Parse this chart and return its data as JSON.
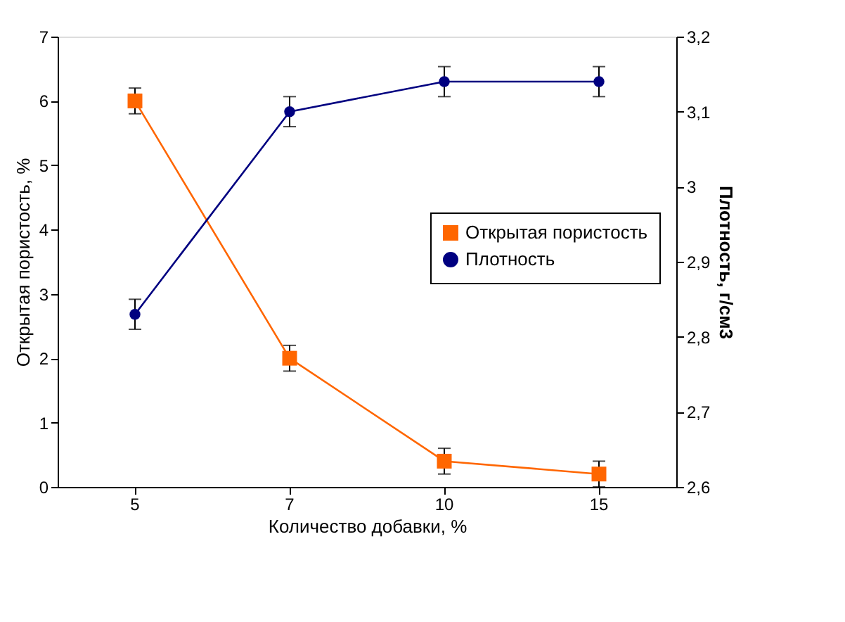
{
  "chart_data": {
    "type": "line",
    "xlabel": "Количество добавки, %",
    "ylabel": "Открытая пористость, %",
    "y2label": "Плотность, г/см3",
    "categories": [
      "5",
      "7",
      "10",
      "15"
    ],
    "series": [
      {
        "name": "Открытая пористость",
        "color": "#ff6600",
        "marker": "square",
        "values": [
          6.0,
          2.0,
          0.4,
          0.2
        ],
        "errors": [
          0.2,
          0.2,
          0.2,
          0.2
        ]
      },
      {
        "name": "Плотность",
        "color": "#000080",
        "marker": "circle",
        "axis": "y2",
        "values": [
          2.83,
          3.1,
          3.14,
          3.14
        ],
        "errors": [
          0.02,
          0.02,
          0.02,
          0.02
        ]
      }
    ],
    "ylim": [
      0,
      7
    ],
    "yticks": [
      0,
      1,
      2,
      3,
      4,
      5,
      6,
      7
    ],
    "y2lim": [
      2.6,
      3.2
    ],
    "y2ticks": [
      {
        "value": 2.6,
        "label": "2,6"
      },
      {
        "value": 2.7,
        "label": "2,7"
      },
      {
        "value": 2.8,
        "label": "2,8"
      },
      {
        "value": 2.9,
        "label": "2,9"
      },
      3,
      {
        "value": 3.1,
        "label": "3,1"
      },
      {
        "value": 3.2,
        "label": "3,2"
      }
    ],
    "grid": false,
    "legend": "right"
  }
}
